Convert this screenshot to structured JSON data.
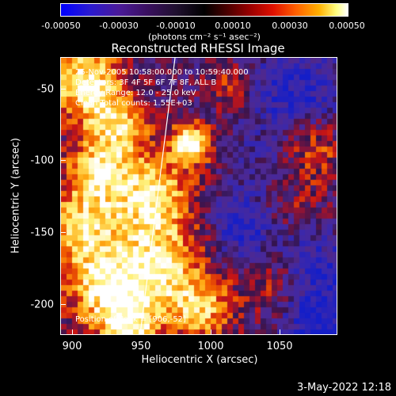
{
  "colorbar": {
    "ticks": [
      "-0.00050",
      "-0.00030",
      "-0.00010",
      "0.00010",
      "0.00030",
      "0.00050"
    ],
    "unit_label": "(photons cm⁻² s⁻¹ asec⁻²)"
  },
  "plot": {
    "title": "Reconstructed RHESSI Image",
    "xlabel": "Heliocentric X (arcsec)",
    "ylabel": "Heliocentric Y (arcsec)",
    "xticks": [
      "900",
      "950",
      "1000",
      "1050"
    ],
    "yticks": [
      "-50",
      "-100",
      "-150",
      "-200"
    ],
    "xrange": [
      884,
      1087
    ],
    "yrange": [
      -222,
      -29
    ]
  },
  "info": {
    "line1": "25-Nov-2005 10:58:00.000 to 10:59:40.000",
    "line2": "Detectors: 3F 4F 5F 6F 7F 8F, ALL B",
    "line3": "Energy Range: 12.0 - 25.0 keV",
    "line4": "Clean    Total counts: 1.55E+03",
    "position": "Position of Peak = [906,-52]"
  },
  "footer": {
    "date": "3-May-2022 12:18"
  },
  "colors": {
    "negative": "#2020c0",
    "background": "#3a1a5a",
    "hot": "#ffffff"
  }
}
